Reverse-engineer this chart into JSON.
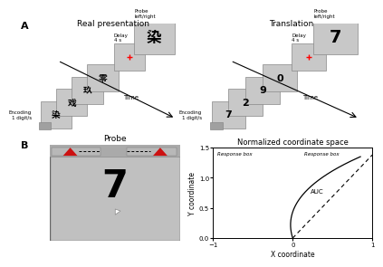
{
  "panel_A_left_title": "Real presentation",
  "panel_A_right_title": "Translation",
  "panel_B_left_title": "Probe",
  "panel_B_right_title": "Normalized coordinate space",
  "encoding_label": "Encoding\n1 digit/s",
  "delay_label": "Delay\n4 s",
  "probe_label": "Probe\nleft/right",
  "time_label": "Time",
  "xlim": [
    -1,
    1
  ],
  "ylim": [
    0,
    1.5
  ],
  "xlabel": "X coordinate",
  "ylabel": "Y coordinate",
  "response_box_left": "Response box",
  "response_box_right": "Response box",
  "auc_label": "AUC",
  "card_color": "#c8c8c8",
  "card_edge": "#888888",
  "chinese_chars": [
    "染",
    "戏",
    "玖",
    "零"
  ],
  "digits": [
    "7",
    "2",
    "9",
    "0"
  ],
  "probe_digit": "7",
  "probe_char": "染",
  "probe_digit_right": "7"
}
